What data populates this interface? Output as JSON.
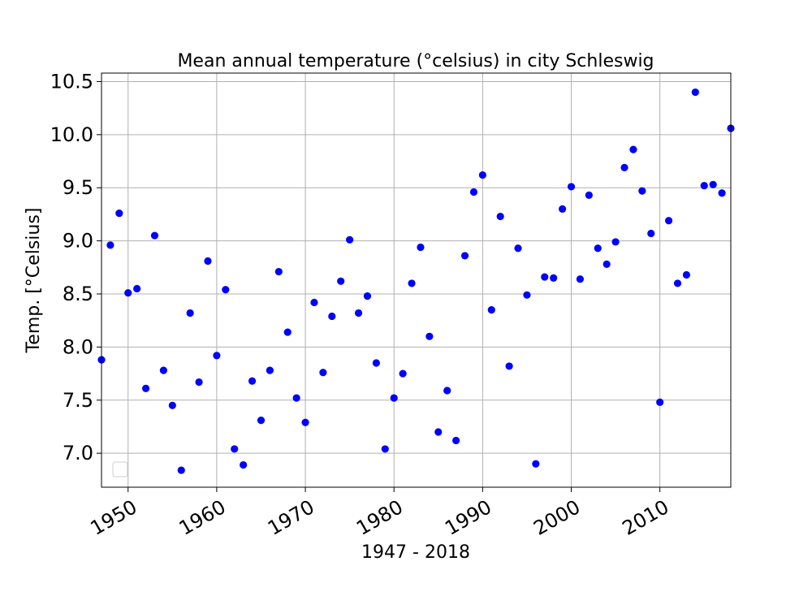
{
  "chart_data": {
    "type": "scatter",
    "title": "Mean annual temperature (°celsius) in city Schleswig",
    "xlabel": "1947 - 2018",
    "ylabel": "Temp. [°Celsius]",
    "xlim": [
      1947,
      2018
    ],
    "ylim": [
      6.68,
      10.58
    ],
    "xticks": [
      1950,
      1960,
      1970,
      1980,
      1990,
      2000,
      2010
    ],
    "xtick_labels": [
      "1950",
      "1960",
      "1970",
      "1980",
      "1990",
      "2000",
      "2010"
    ],
    "yticks": [
      7.0,
      7.5,
      8.0,
      8.5,
      9.0,
      9.5,
      10.0,
      10.5
    ],
    "ytick_labels": [
      "7.0",
      "7.5",
      "8.0",
      "8.5",
      "9.0",
      "9.5",
      "10.0",
      "10.5"
    ],
    "grid": true,
    "legend": "lower-left",
    "marker_color": "#0000ff",
    "series": [
      {
        "x": [
          1947,
          1948,
          1949,
          1950,
          1951,
          1952,
          1953,
          1954,
          1955,
          1956,
          1957,
          1958,
          1959,
          1960,
          1961,
          1962,
          1963,
          1964,
          1965,
          1966,
          1967,
          1968,
          1969,
          1970,
          1971,
          1972,
          1973,
          1974,
          1975,
          1976,
          1977,
          1978,
          1979,
          1980,
          1981,
          1982,
          1983,
          1984,
          1985,
          1986,
          1987,
          1988,
          1989,
          1990,
          1991,
          1992,
          1993,
          1994,
          1995,
          1996,
          1997,
          1998,
          1999,
          2000,
          2001,
          2002,
          2003,
          2004,
          2005,
          2006,
          2007,
          2008,
          2009,
          2010,
          2011,
          2012,
          2013,
          2014,
          2015,
          2016,
          2017,
          2018
        ],
        "values": [
          7.88,
          8.96,
          9.26,
          8.51,
          8.55,
          7.61,
          9.05,
          7.78,
          7.45,
          6.84,
          8.32,
          7.67,
          8.81,
          7.92,
          8.54,
          7.04,
          6.89,
          7.68,
          7.31,
          7.78,
          8.71,
          8.14,
          7.52,
          7.29,
          8.42,
          7.76,
          8.29,
          8.62,
          9.01,
          8.32,
          8.48,
          7.85,
          7.04,
          7.52,
          7.75,
          8.6,
          8.94,
          8.1,
          7.2,
          7.59,
          7.12,
          8.86,
          9.46,
          9.62,
          8.35,
          9.23,
          7.82,
          8.93,
          8.49,
          6.9,
          8.66,
          8.65,
          9.3,
          9.51,
          8.64,
          9.43,
          8.93,
          8.78,
          8.99,
          9.69,
          9.86,
          9.47,
          9.07,
          7.48,
          9.19,
          8.6,
          8.68,
          10.4,
          9.52,
          9.53,
          9.45,
          10.06
        ]
      }
    ]
  }
}
